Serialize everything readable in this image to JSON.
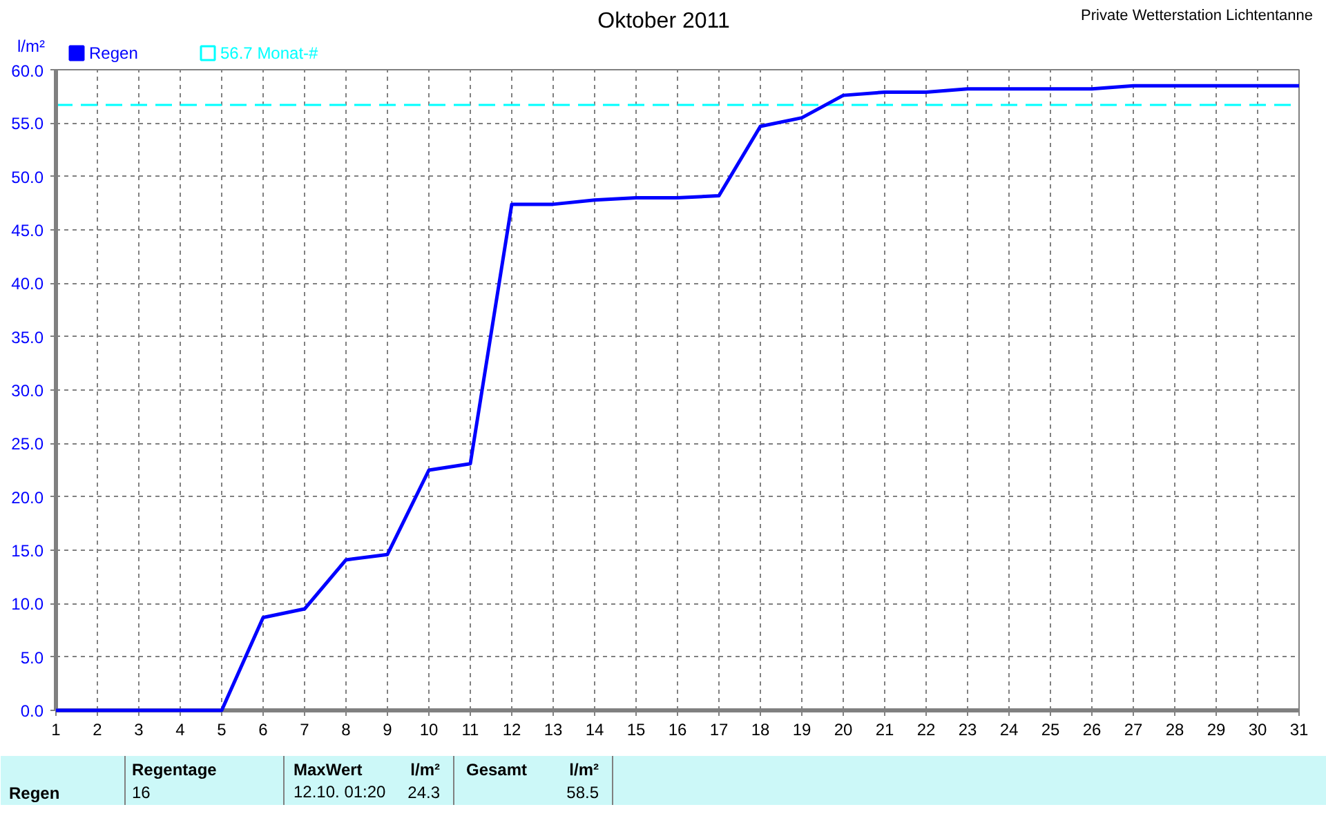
{
  "chart_data": {
    "type": "line",
    "title": "Oktober 2011",
    "ylabel": "l/m²",
    "annotations": [
      "Private Wetterstation Lichtentanne",
      "Regentage",
      "16",
      "MaxWert",
      "l/m²",
      "12.10.  01:20",
      "24.3",
      "Gesamt",
      "l/m²",
      "58.5"
    ],
    "x": [
      1,
      2,
      3,
      4,
      5,
      6,
      7,
      8,
      9,
      10,
      11,
      12,
      13,
      14,
      15,
      16,
      17,
      18,
      19,
      20,
      21,
      22,
      23,
      24,
      25,
      26,
      27,
      28,
      29,
      30,
      31
    ],
    "series": [
      {
        "name": "Regen",
        "color": "#0000ff",
        "values": [
          0,
          0,
          0,
          0,
          0,
          8.7,
          9.5,
          14.1,
          14.6,
          22.5,
          23.1,
          47.4,
          47.4,
          47.8,
          48.0,
          48.0,
          48.2,
          54.7,
          55.5,
          57.6,
          57.9,
          57.9,
          58.2,
          58.2,
          58.2,
          58.2,
          58.5,
          58.5,
          58.5,
          58.5,
          58.5
        ]
      }
    ],
    "ref_lines": [
      {
        "axis": "y",
        "value": 56.7,
        "label": "56.7 Monat-#",
        "color": "#00ffff",
        "line_style": "dashed"
      }
    ],
    "xlim": [
      1,
      31
    ],
    "xticks": [
      1,
      2,
      3,
      4,
      5,
      6,
      7,
      8,
      9,
      10,
      11,
      12,
      13,
      14,
      15,
      16,
      17,
      18,
      19,
      20,
      21,
      22,
      23,
      24,
      25,
      26,
      27,
      28,
      29,
      30,
      31
    ],
    "ylim": [
      0,
      60
    ],
    "yticks": [
      {
        "value": 0,
        "label": "0.0"
      },
      {
        "value": 5,
        "label": "5.0"
      },
      {
        "value": 10,
        "label": "10.0"
      },
      {
        "value": 15,
        "label": "15.0"
      },
      {
        "value": 20,
        "label": "20.0"
      },
      {
        "value": 25,
        "label": "25.0"
      },
      {
        "value": 30,
        "label": "30.0"
      },
      {
        "value": 35,
        "label": "35.0"
      },
      {
        "value": 40,
        "label": "40.0"
      },
      {
        "value": 45,
        "label": "45.0"
      },
      {
        "value": 50,
        "label": "50.0"
      },
      {
        "value": 55,
        "label": "55.0"
      },
      {
        "value": 60,
        "label": "60.0"
      }
    ],
    "grid": true,
    "legend": "top left"
  }
}
